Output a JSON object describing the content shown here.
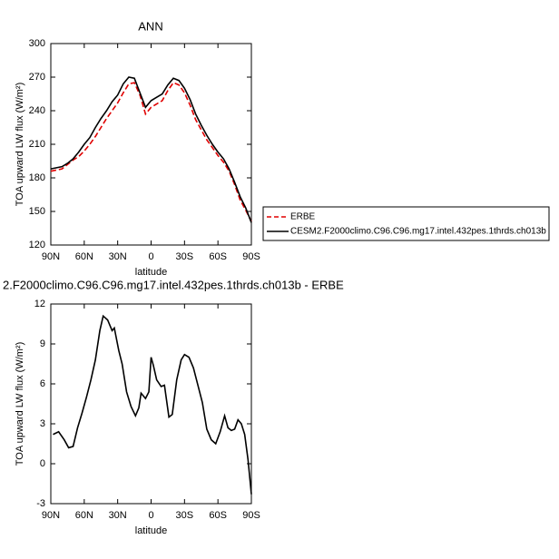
{
  "chart_data": [
    {
      "type": "line",
      "title": "ANN",
      "xlabel": "latitude",
      "ylabel": "TOA upward LW flux (W/m²)",
      "x": [
        90,
        85,
        80,
        75,
        70,
        65,
        60,
        55,
        50,
        45,
        40,
        35,
        30,
        25,
        20,
        15,
        10,
        5,
        0,
        -5,
        -10,
        -15,
        -20,
        -25,
        -30,
        -35,
        -40,
        -45,
        -50,
        -55,
        -60,
        -65,
        -70,
        -75,
        -80,
        -85,
        -90
      ],
      "series": [
        {
          "name": "ERBE",
          "color": "#e00000",
          "dashed": true,
          "values": [
            186,
            187,
            188,
            192,
            196,
            199,
            204,
            210,
            217,
            225,
            233,
            240,
            247,
            256,
            264,
            265,
            254,
            237,
            243,
            246,
            249,
            258,
            265,
            263,
            256,
            245,
            232,
            223,
            214,
            207,
            200,
            194,
            186,
            174,
            160,
            151,
            141
          ]
        },
        {
          "name": "CESM2.F2000climo.C96.C96.mg17.intel.432pes.1thrds.ch013b",
          "color": "#000000",
          "dashed": false,
          "values": [
            188,
            189,
            190,
            193,
            197,
            203,
            210,
            216,
            225,
            233,
            240,
            248,
            254,
            264,
            270,
            269,
            256,
            243,
            249,
            252,
            255,
            263,
            269,
            267,
            260,
            250,
            237,
            227,
            218,
            210,
            203,
            197,
            188,
            176,
            163,
            153,
            140
          ]
        }
      ],
      "xlim": [
        90,
        -90
      ],
      "xticks": [
        {
          "value": 90,
          "label": "90N"
        },
        {
          "value": 60,
          "label": "60N"
        },
        {
          "value": 30,
          "label": "30N"
        },
        0,
        {
          "value": -30,
          "label": "30S"
        },
        {
          "value": -60,
          "label": "60S"
        },
        {
          "value": -90,
          "label": "90S"
        }
      ],
      "ylim": [
        120,
        300
      ],
      "yticks": [
        120,
        150,
        180,
        210,
        240,
        270,
        300
      ],
      "legend": "right"
    },
    {
      "type": "line",
      "title": "2.F2000climo.C96.C96.mg17.intel.432pes.1thrds.ch013b - ERBE",
      "xlabel": "latitude",
      "ylabel": "TOA upward LW flux (W/m²)",
      "x": [
        88,
        83,
        78,
        74,
        70,
        66,
        62,
        58,
        54,
        50,
        46,
        43,
        39,
        35,
        33,
        29,
        26,
        22,
        18,
        14,
        11,
        9,
        5,
        2,
        0,
        -2,
        -5,
        -9,
        -12,
        -16,
        -19,
        -23,
        -27,
        -30,
        -34,
        -38,
        -42,
        -46,
        -50,
        -54,
        -58,
        -62,
        -66,
        -69,
        -72,
        -75,
        -78,
        -81,
        -84,
        -87,
        -90
      ],
      "values": [
        2.2,
        2.4,
        1.8,
        1.2,
        1.3,
        2.7,
        3.8,
        5.0,
        6.3,
        7.8,
        10.0,
        11.1,
        10.8,
        10.0,
        10.2,
        8.5,
        7.5,
        5.4,
        4.3,
        3.6,
        4.2,
        5.3,
        4.9,
        5.4,
        8.0,
        7.4,
        6.3,
        5.8,
        5.9,
        3.5,
        3.7,
        6.3,
        7.8,
        8.2,
        8.0,
        7.2,
        5.9,
        4.6,
        2.6,
        1.8,
        1.5,
        2.4,
        3.6,
        2.7,
        2.5,
        2.6,
        3.3,
        3.0,
        2.2,
        0.3,
        -2.3
      ],
      "color": "#000000",
      "xlim": [
        90,
        -90
      ],
      "xticks": [
        {
          "value": 90,
          "label": "90N"
        },
        {
          "value": 60,
          "label": "60N"
        },
        {
          "value": 30,
          "label": "30N"
        },
        0,
        {
          "value": -30,
          "label": "30S"
        },
        {
          "value": -60,
          "label": "60S"
        },
        {
          "value": -90,
          "label": "90S"
        }
      ],
      "ylim": [
        -3,
        12
      ],
      "yticks": [
        -3,
        0,
        3,
        6,
        9,
        12
      ]
    }
  ]
}
